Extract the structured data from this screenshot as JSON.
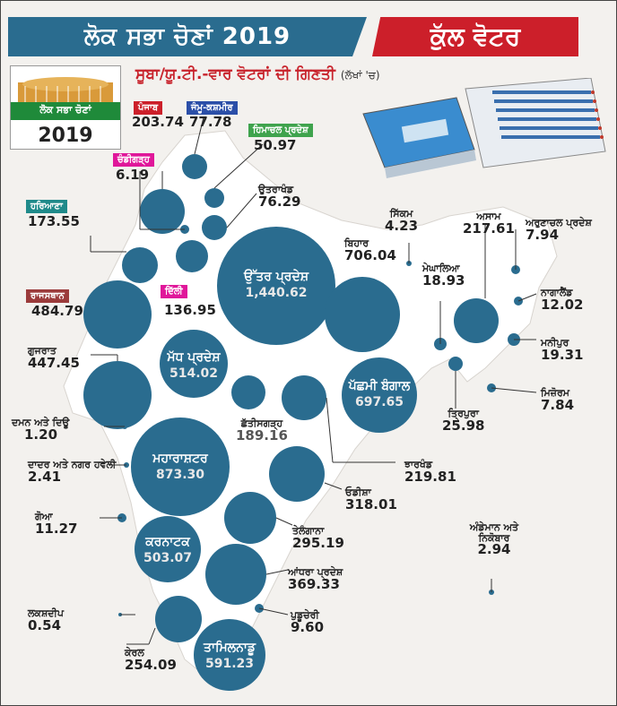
{
  "header": {
    "left_title": "ਲੋਕ ਸਭਾ ਚੋਣਾਂ 2019",
    "right_title": "ਕੁੱਲ ਵੋਟਰ",
    "subtitle": "ਸੂਬਾ/ਯੂ.ਟੀ.-ਵਾਰ ਵੋਟਰਾਂ ਦੀ ਗਿਣਤੀ",
    "unit": "(ਲੱਖਾਂ 'ਚ)"
  },
  "logo": {
    "title": "ਲੋਕ ਸਭਾ ਚੋਣਾਂ",
    "year": "2019"
  },
  "colors": {
    "bubble": "#2a6c8f",
    "map": "#ffffff",
    "accent_red": "#cc1f2a",
    "tag_green": "#3fa34d",
    "tag_pink": "#e0179a",
    "tag_blue": "#2b4fa8",
    "tag_teal": "#1f8a8a",
    "tag_brown": "#9b3b3b"
  },
  "states": {
    "punjab": {
      "name": "ਪੰਜਾਬ",
      "value": "203.74"
    },
    "jk": {
      "name": "ਜੰਮੂ-ਕਸ਼ਮੀਰ",
      "value": "77.78"
    },
    "hp": {
      "name": "ਹਿਮਾਚਲ ਪ੍ਰਦੇਸ਼",
      "value": "50.97"
    },
    "chandigarh": {
      "name": "ਚੰਡੀਗੜ੍ਹ",
      "value": "6.19"
    },
    "uttarakhand": {
      "name": "ਉਤਰਾਖੰਡ",
      "value": "76.29"
    },
    "haryana": {
      "name": "ਹਰਿਆਣਾ",
      "value": "173.55"
    },
    "delhi": {
      "name": "ਦਿੱਲੀ",
      "value": "136.95"
    },
    "up": {
      "name": "ਉੱਤਰ ਪ੍ਰਦੇਸ਼",
      "value": "1,440.62"
    },
    "rajasthan": {
      "name": "ਰਾਜਸਥਾਨ",
      "value": "484.79"
    },
    "gujarat": {
      "name": "ਗੁਜਰਾਤ",
      "value": "447.45"
    },
    "mp": {
      "name": "ਮੱਧ ਪ੍ਰਦੇਸ਼",
      "value": "514.02"
    },
    "bihar": {
      "name": "ਬਿਹਾਰ",
      "value": "706.04"
    },
    "sikkim": {
      "name": "ਸਿੱਕਮ",
      "value": "4.23"
    },
    "assam": {
      "name": "ਅਸਾਮ",
      "value": "217.61"
    },
    "arunachal": {
      "name": "ਅਰੁਣਾਚਲ ਪ੍ਰਦੇਸ਼",
      "value": "7.94"
    },
    "meghalaya": {
      "name": "ਮੇਘਾਲਿਆ",
      "value": "18.93"
    },
    "nagaland": {
      "name": "ਨਾਗਾਲੈਂਡ",
      "value": "12.02"
    },
    "manipur": {
      "name": "ਮਨੀਪੁਰ",
      "value": "19.31"
    },
    "mizoram": {
      "name": "ਮਿਜ਼ੋਰਮ",
      "value": "7.84"
    },
    "tripura": {
      "name": "ਤ੍ਰਿਪੁਰਾ",
      "value": "25.98"
    },
    "wb": {
      "name": "ਪੱਛਮੀ ਬੰਗਾਲ",
      "value": "697.65"
    },
    "chhattisgarh": {
      "name": "ਛੱਤੀਸਗੜ੍ਹ",
      "value": "189.16"
    },
    "jharkhand": {
      "name": "ਝਾਰਖੰਡ",
      "value": "219.81"
    },
    "daman": {
      "name": "ਦਮਨ ਅਤੇ ਦਿਊ",
      "value": "1.20"
    },
    "dnh": {
      "name": "ਦਾਦਰ ਅਤੇ ਨਗਰ ਹਵੇਲੀ",
      "value": "2.41"
    },
    "maharashtra": {
      "name": "ਮਹਾਰਾਸ਼ਟਰ",
      "value": "873.30"
    },
    "odisha": {
      "name": "ਓਡੀਸ਼ਾ",
      "value": "318.01"
    },
    "goa": {
      "name": "ਗੋਆ",
      "value": "11.27"
    },
    "telangana": {
      "name": "ਤੇਲੰਗਾਨਾ",
      "value": "295.19"
    },
    "karnataka": {
      "name": "ਕਰਨਾਟਕ",
      "value": "503.07"
    },
    "andhra": {
      "name": "ਆਂਧਰਾ ਪ੍ਰਦੇਸ਼",
      "value": "369.33"
    },
    "andaman": {
      "name": "ਅੰਡੇਮਾਨ ਅਤੇ ਨਿਕੋਬਾਰ",
      "value": "2.94"
    },
    "lakshadweep": {
      "name": "ਲਕਸ਼ਦੀਪ",
      "value": "0.54"
    },
    "puducherry": {
      "name": "ਪੁਡੂਚੇਰੀ",
      "value": "9.60"
    },
    "kerala": {
      "name": "ਕੇਰਲ",
      "value": "254.09"
    },
    "tn": {
      "name": "ਤਾਮਿਲਨਾਡੂ",
      "value": "591.23"
    }
  }
}
